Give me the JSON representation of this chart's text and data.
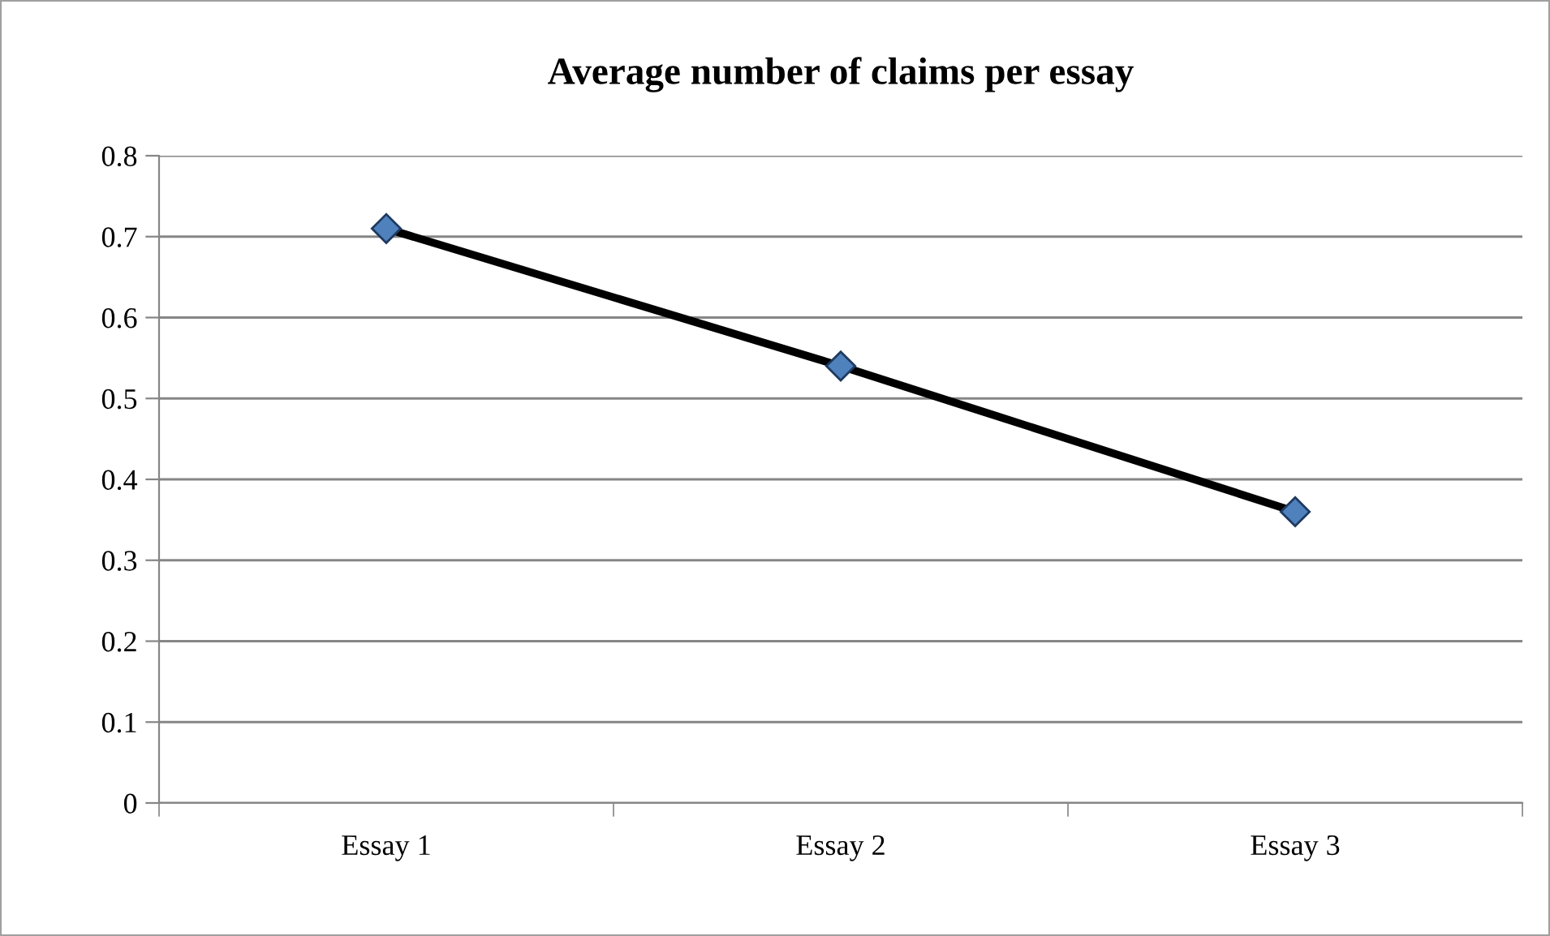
{
  "chart_data": {
    "type": "line",
    "title": "Average number of claims per essay",
    "categories": [
      "Essay 1",
      "Essay 2",
      "Essay 3"
    ],
    "series": [
      {
        "color": "#000000",
        "values": [
          0.71,
          0.54,
          0.36
        ]
      }
    ],
    "marker": "diamond",
    "line_style": "solid",
    "ylim": [
      0,
      0.8
    ],
    "yticks": [
      {
        "value": 0,
        "label": "0"
      },
      0.1,
      0.2,
      0.3,
      0.4,
      0.5,
      0.6,
      0.7,
      0.8
    ],
    "grid": "y",
    "legend": false
  }
}
